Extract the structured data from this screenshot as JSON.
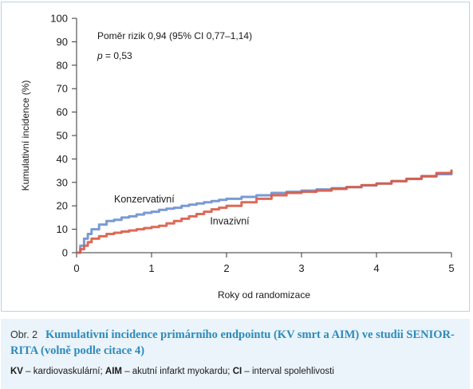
{
  "chart_data": {
    "type": "line",
    "title": "",
    "xlabel": "Roky od randomizace",
    "ylabel": "Kumulativní incidence (%)",
    "xlim": [
      0,
      5
    ],
    "ylim": [
      0,
      100
    ],
    "x_ticks": [
      "0",
      "1",
      "2",
      "3",
      "4",
      "5"
    ],
    "y_ticks": [
      "0",
      "10",
      "20",
      "30",
      "40",
      "50",
      "60",
      "70",
      "80",
      "90",
      "100"
    ],
    "grid": false,
    "annotations": {
      "hazard_ratio": "Poměr rizik 0,94 (95% CI 0,77–1,14)",
      "p_label": "p",
      "p_value": " = 0,53"
    },
    "series": [
      {
        "name": "Konzervativní",
        "color": "#6a8fd0",
        "x": [
          0,
          0.05,
          0.1,
          0.15,
          0.2,
          0.3,
          0.4,
          0.5,
          0.6,
          0.7,
          0.8,
          0.9,
          1.0,
          1.1,
          1.2,
          1.3,
          1.4,
          1.5,
          1.6,
          1.7,
          1.8,
          1.9,
          2.0,
          2.2,
          2.4,
          2.6,
          2.8,
          3.0,
          3.2,
          3.4,
          3.6,
          3.8,
          4.0,
          4.2,
          4.4,
          4.6,
          4.8,
          5.0
        ],
        "values": [
          0,
          3,
          6,
          8,
          10,
          12,
          13.5,
          14,
          15,
          15.5,
          16.3,
          17,
          17.5,
          18.3,
          18.8,
          19.2,
          20,
          20.5,
          21,
          21.5,
          22,
          22.5,
          23,
          23.8,
          24.5,
          25.5,
          26,
          26.5,
          27,
          27.5,
          28,
          28.7,
          29.5,
          30.5,
          31.5,
          32.5,
          33.5,
          35
        ]
      },
      {
        "name": "Invazivní",
        "color": "#d95a45",
        "x": [
          0,
          0.05,
          0.1,
          0.15,
          0.2,
          0.3,
          0.4,
          0.5,
          0.6,
          0.7,
          0.8,
          0.9,
          1.0,
          1.1,
          1.2,
          1.3,
          1.4,
          1.5,
          1.6,
          1.7,
          1.8,
          1.9,
          2.0,
          2.2,
          2.4,
          2.6,
          2.8,
          3.0,
          3.2,
          3.4,
          3.6,
          3.8,
          4.0,
          4.2,
          4.4,
          4.6,
          4.8,
          5.0
        ],
        "values": [
          0,
          1.5,
          3,
          4.5,
          6,
          7,
          8,
          8.5,
          9,
          9.5,
          10,
          10.5,
          11,
          11.5,
          12.5,
          13.5,
          14.5,
          15.5,
          16.5,
          17.5,
          18.5,
          19.2,
          20,
          21.5,
          23,
          24.5,
          25.5,
          26,
          26.5,
          27.2,
          28,
          28.8,
          29.5,
          30.5,
          31.5,
          32.7,
          34,
          35.5
        ]
      }
    ],
    "series_labels": [
      {
        "text": "Konzervativní",
        "anchor_x": 0.5,
        "anchor_y": 21.5
      },
      {
        "text": "Invazivní",
        "anchor_x": 1.78,
        "anchor_y": 12
      }
    ]
  },
  "caption": {
    "fig_no": "Obr. 2",
    "title": "Kumulativní incidence primárního endpointu (KV smrt a AIM) ve studii SENIOR-RITA (volně podle citace 4)",
    "note_kv_abbr": "KV",
    "note_kv_text": " – kardiovaskulární; ",
    "note_aim_abbr": "AIM",
    "note_aim_text": " – akutní infarkt myokardu; ",
    "note_ci_abbr": "CI",
    "note_ci_text": " – interval spolehlivosti"
  }
}
